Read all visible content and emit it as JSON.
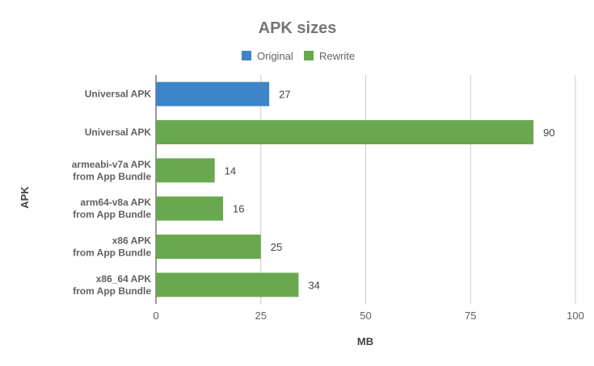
{
  "chart_data": {
    "type": "bar",
    "orientation": "horizontal",
    "title": "APK sizes",
    "xlabel": "MB",
    "ylabel": "APK",
    "xlim": [
      0,
      100
    ],
    "xticks": [
      "0",
      "25",
      "50",
      "75",
      "100"
    ],
    "grid": true,
    "legend_position": "top",
    "series": [
      {
        "name": "Original",
        "color": "#3d85c6"
      },
      {
        "name": "Rewrite",
        "color": "#6aa84f"
      }
    ],
    "bars": [
      {
        "label": [
          "Universal APK"
        ],
        "value": 27,
        "series": "Original"
      },
      {
        "label": [
          "Universal APK"
        ],
        "value": 90,
        "series": "Rewrite"
      },
      {
        "label": [
          "armeabi-v7a APK",
          "from App Bundle"
        ],
        "value": 14,
        "series": "Rewrite"
      },
      {
        "label": [
          "arm64-v8a APK",
          "from App Bundle"
        ],
        "value": 16,
        "series": "Rewrite"
      },
      {
        "label": [
          "x86 APK",
          "from App Bundle"
        ],
        "value": 25,
        "series": "Rewrite"
      },
      {
        "label": [
          "x86_64 APK",
          "from App Bundle"
        ],
        "value": 34,
        "series": "Rewrite"
      }
    ]
  }
}
